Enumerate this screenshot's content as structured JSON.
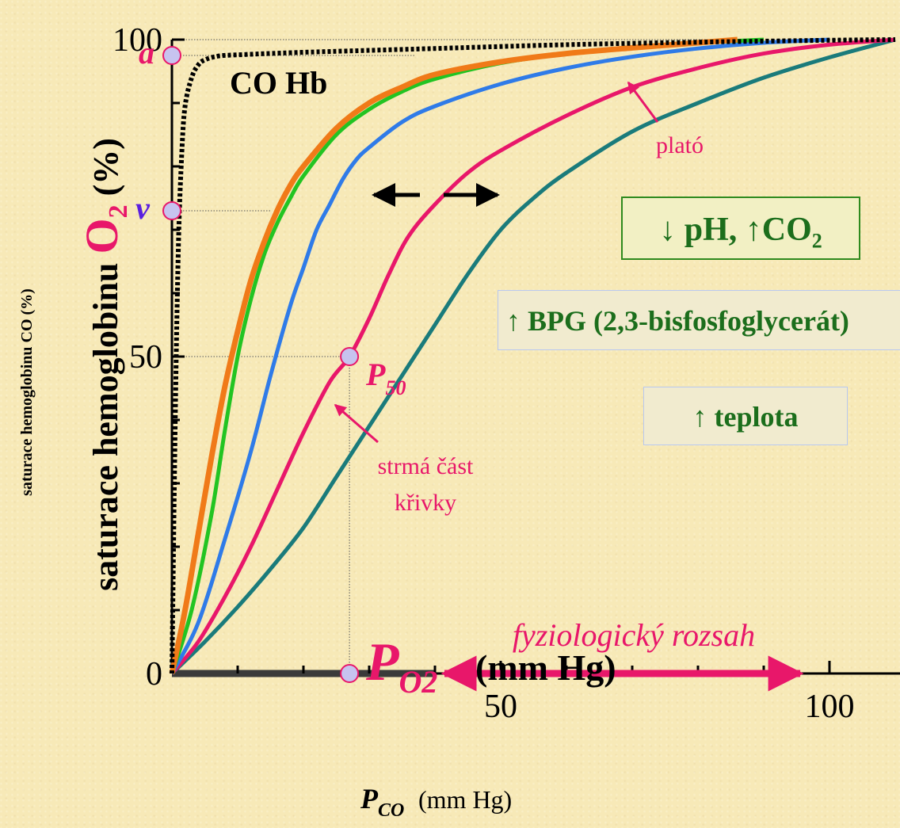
{
  "chart_data": {
    "type": "line",
    "xlabel_main": "P",
    "xlabel_main_sub": "O2",
    "xlabel_units": "(mm Hg)",
    "xlabel_secondary": "P",
    "xlabel_secondary_sub": "CO",
    "xlabel_secondary_units": "(mm Hg)",
    "ylabel_prefix": "saturace hemoglobinu ",
    "ylabel_o": "O",
    "ylabel_sub": "2",
    "ylabel_suffix": " (%)",
    "ylabel_secondary": "saturace hemoglobinu CO (%)",
    "xlim": [
      0,
      110
    ],
    "ylim": [
      0,
      100
    ],
    "x_tick_labels": [
      {
        "value": 50,
        "label": "50"
      },
      {
        "value": 100,
        "label": "100"
      }
    ],
    "y_tick_labels": [
      {
        "value": 0,
        "label": "0"
      },
      {
        "value": 50,
        "label": "50"
      },
      {
        "value": 100,
        "label": "100"
      }
    ],
    "x_minor_ticks": [
      10,
      20,
      30,
      40,
      50,
      60,
      70,
      80,
      90,
      100
    ],
    "y_minor_ticks": [
      10,
      20,
      30,
      40,
      50,
      60,
      70,
      80,
      90,
      100
    ],
    "series": [
      {
        "color": "#f07a18",
        "x": [
          0,
          2,
          4,
          6,
          8,
          10,
          12,
          14,
          16,
          18,
          20,
          25,
          30,
          35,
          40,
          50,
          60,
          70,
          80,
          86
        ],
        "y": [
          0,
          10,
          22,
          34,
          45,
          54,
          62,
          68,
          73,
          77,
          80,
          86,
          90,
          92.5,
          94.5,
          96.5,
          97.8,
          98.7,
          99.5,
          100
        ]
      },
      {
        "color": "#22c422",
        "x": [
          0,
          3,
          6,
          8,
          10,
          12,
          14,
          16,
          18,
          20,
          25,
          30,
          35,
          40,
          50,
          60,
          70,
          80,
          90
        ],
        "y": [
          0,
          10,
          25,
          38,
          50,
          59,
          66,
          71,
          75,
          78.5,
          85,
          89,
          91.8,
          93.8,
          96.3,
          97.8,
          98.8,
          99.5,
          100
        ]
      },
      {
        "color": "#2f7be8",
        "x": [
          0,
          4,
          8,
          12,
          15,
          18,
          20,
          22,
          24,
          26,
          28,
          30,
          35,
          40,
          50,
          60,
          70,
          80,
          90,
          100
        ],
        "y": [
          0,
          8,
          21,
          35,
          47,
          58,
          64,
          70,
          74,
          78,
          81,
          83,
          87,
          89.5,
          93,
          95.5,
          97.3,
          98.6,
          99.5,
          100
        ]
      },
      {
        "color": "#e8176a",
        "x": [
          0,
          4,
          8,
          12,
          16,
          20,
          24,
          27,
          30,
          33,
          36,
          40,
          45,
          50,
          60,
          70,
          80,
          90,
          100,
          110
        ],
        "y": [
          0,
          5,
          12,
          20,
          29,
          38,
          46,
          50,
          56,
          63,
          69,
          74,
          79,
          82.5,
          88,
          92.5,
          95.5,
          97.8,
          99.2,
          100
        ]
      },
      {
        "color": "#1a7b7b",
        "x": [
          0,
          5,
          10,
          15,
          20,
          25,
          30,
          35,
          40,
          45,
          50,
          55,
          60,
          70,
          80,
          90,
          100,
          110
        ],
        "y": [
          0,
          5,
          10.5,
          16.5,
          23,
          31,
          39,
          47,
          55,
          63,
          70,
          75,
          79,
          85.5,
          90,
          94,
          97.2,
          100
        ]
      },
      {
        "color": "#000000",
        "style": "dotted",
        "x": [
          0,
          0.5,
          1,
          1.5,
          2,
          3,
          4,
          5,
          7,
          10,
          20,
          40,
          60,
          80,
          100,
          110
        ],
        "y": [
          0,
          40,
          68,
          82,
          89.5,
          94,
          96,
          96.8,
          97.4,
          97.6,
          98,
          98.6,
          99.2,
          99.6,
          99.9,
          100
        ]
      }
    ],
    "points": [
      {
        "label": "a",
        "x": 0,
        "y": 97.5,
        "color": "#e8176a"
      },
      {
        "label": "v",
        "x": 0,
        "y": 73,
        "color": "#5a1fe0"
      },
      {
        "label": "P",
        "sub": "50",
        "x": 27,
        "y": 50,
        "color": "#e8176a"
      },
      {
        "x": 27,
        "y": 0
      }
    ],
    "annotations": {
      "co_hb": "CO Hb",
      "plato": "plató",
      "strma": [
        "strmá část",
        "křivky"
      ],
      "fyziologicky": "fyziologický rozsah",
      "fyziologicky_range": [
        40,
        97
      ]
    }
  },
  "boxes": {
    "ph_arrow": "↓",
    "ph_text": " pH, ",
    "co2_arrow": "↑",
    "co2_text": "CO",
    "co2_sub": "2",
    "bpg": "↑ BPG (2,3-bisfosfoglycerát)",
    "teplota": "↑ teplota"
  },
  "colors": {
    "background": "#f7e9b7",
    "label_pink": "#e8176a",
    "box_text": "#1c6e1c",
    "box_green_border": "#2e8a1e"
  }
}
